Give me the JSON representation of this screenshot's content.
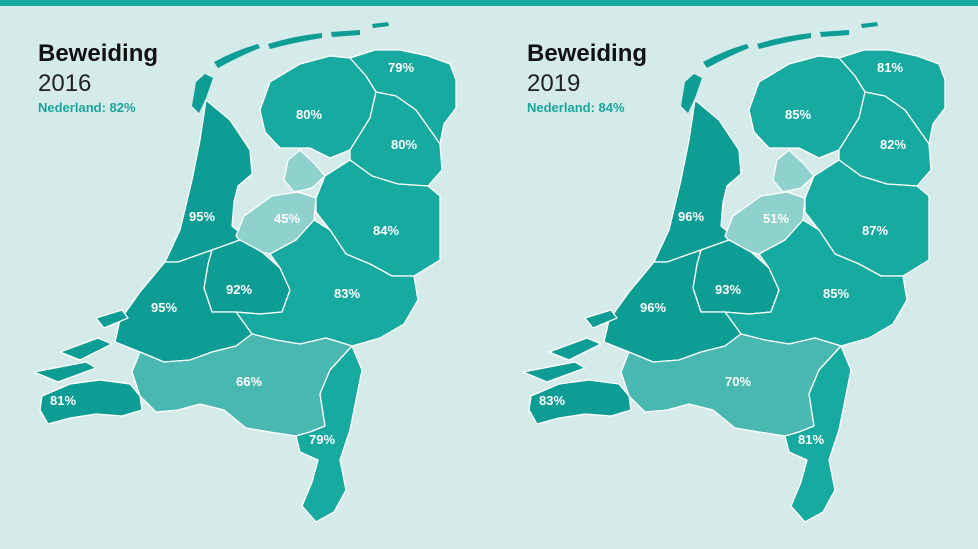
{
  "colors": {
    "background": "#d5ebea",
    "accent": "#16a9a0",
    "region_dark": "#0d9d94",
    "region_mid": "#17aaa0",
    "region_light": "#49b8b1",
    "region_pale": "#8fd1cc",
    "title": "#111111",
    "national_label": "#1aa59c"
  },
  "maps": [
    {
      "title": "Beweiding",
      "year": "2016",
      "national": "Nederland: 82%",
      "regions": {
        "groningen": "79%",
        "friesland": "80%",
        "drenthe": "80%",
        "flevoland": "45%",
        "noord_holland": "95%",
        "overijssel": "84%",
        "utrecht": "92%",
        "gelderland": "83%",
        "zuid_holland": "95%",
        "noord_brabant": "66%",
        "zeeland": "81%",
        "limburg": "79%"
      }
    },
    {
      "title": "Beweiding",
      "year": "2019",
      "national": "Nederland: 84%",
      "regions": {
        "groningen": "81%",
        "friesland": "85%",
        "drenthe": "82%",
        "flevoland": "51%",
        "noord_holland": "96%",
        "overijssel": "87%",
        "utrecht": "93%",
        "gelderland": "85%",
        "zuid_holland": "96%",
        "noord_brabant": "70%",
        "zeeland": "83%",
        "limburg": "81%"
      }
    }
  ]
}
